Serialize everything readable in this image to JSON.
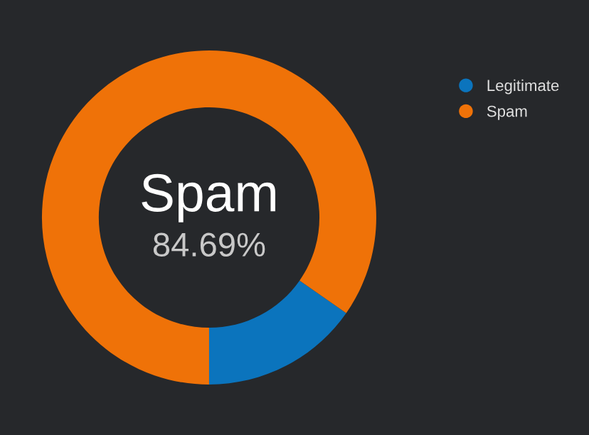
{
  "chart_data": {
    "type": "donut",
    "categories": [
      "Legitimate",
      "Spam"
    ],
    "values": [
      15.31,
      84.69
    ],
    "colors": [
      "#0b74bd",
      "#ef7208"
    ],
    "annotations": [
      "Spam",
      "84.69%"
    ],
    "legend": "top right"
  }
}
